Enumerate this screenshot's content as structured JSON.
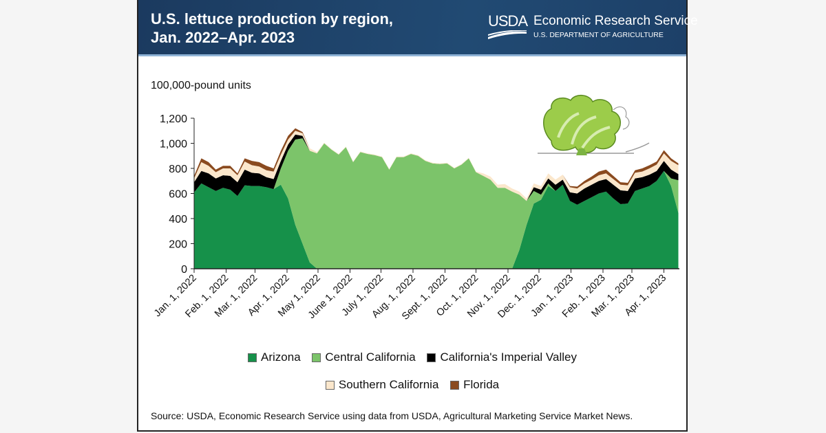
{
  "header": {
    "title_line1": "U.S. lettuce production by region,",
    "title_line2": "Jan. 2022–Apr. 2023",
    "logo_usda": "USDA",
    "logo_agency": "Economic Research Service",
    "logo_department": "U.S. DEPARTMENT OF AGRICULTURE"
  },
  "source": "Source: USDA, Economic Research Service using data from USDA, Agricultural Marketing Service Market News.",
  "chart_data": {
    "type": "area",
    "stacked": true,
    "title": "U.S. lettuce production by region, Jan. 2022–Apr. 2023",
    "ylabel": "100,000-pound units",
    "xlabel": "",
    "ylim": [
      0,
      1200
    ],
    "yticks": [
      0,
      200,
      400,
      600,
      800,
      1000,
      1200
    ],
    "ytick_labels": [
      "0",
      "200",
      "400",
      "600",
      "800",
      "1,000",
      "1,200"
    ],
    "xlim": [
      "2022-01-01",
      "2023-04-16"
    ],
    "xticks": [
      "2022-01-01",
      "2022-02-01",
      "2022-03-01",
      "2022-04-01",
      "2022-05-01",
      "2022-06-01",
      "2022-07-01",
      "2022-08-01",
      "2022-09-01",
      "2022-10-01",
      "2022-11-01",
      "2022-12-01",
      "2023-01-01",
      "2023-02-01",
      "2023-03-01",
      "2023-04-01"
    ],
    "xtick_labels": [
      "Jan. 1, 2022",
      "Feb. 1, 2022",
      "Mar. 1, 2022",
      "Apr. 1, 2022",
      "May 1, 2022",
      "June 1, 2022",
      "July 1, 2022",
      "Aug. 1, 2022",
      "Sept. 1, 2022",
      "Oct. 1, 2022",
      "Nov. 1, 2022",
      "Dec. 1, 2022",
      "Jan. 1, 2023",
      "Feb. 1, 2023",
      "Mar. 1, 2023",
      "Apr. 1, 2023"
    ],
    "grid": false,
    "legend_placement": "bottom",
    "x": [
      "2022-01-01",
      "2022-01-08",
      "2022-01-15",
      "2022-01-22",
      "2022-01-29",
      "2022-02-05",
      "2022-02-12",
      "2022-02-19",
      "2022-02-26",
      "2022-03-05",
      "2022-03-12",
      "2022-03-19",
      "2022-03-26",
      "2022-04-02",
      "2022-04-09",
      "2022-04-16",
      "2022-04-23",
      "2022-04-30",
      "2022-05-07",
      "2022-05-14",
      "2022-05-21",
      "2022-05-28",
      "2022-06-04",
      "2022-06-11",
      "2022-06-18",
      "2022-06-25",
      "2022-07-02",
      "2022-07-09",
      "2022-07-16",
      "2022-07-23",
      "2022-07-30",
      "2022-08-06",
      "2022-08-13",
      "2022-08-20",
      "2022-08-27",
      "2022-09-03",
      "2022-09-10",
      "2022-09-17",
      "2022-09-24",
      "2022-10-01",
      "2022-10-08",
      "2022-10-15",
      "2022-10-22",
      "2022-10-29",
      "2022-11-05",
      "2022-11-12",
      "2022-11-19",
      "2022-11-26",
      "2022-12-03",
      "2022-12-10",
      "2022-12-17",
      "2022-12-24",
      "2022-12-31",
      "2023-01-07",
      "2023-01-14",
      "2023-01-21",
      "2023-01-28",
      "2023-02-04",
      "2023-02-11",
      "2023-02-18",
      "2023-02-25",
      "2023-03-04",
      "2023-03-11",
      "2023-03-18",
      "2023-03-25",
      "2023-04-01",
      "2023-04-08",
      "2023-04-15"
    ],
    "series": [
      {
        "name": "Arizona",
        "color": "#16914a",
        "values": [
          610,
          680,
          650,
          620,
          645,
          630,
          580,
          665,
          660,
          660,
          650,
          635,
          670,
          560,
          350,
          200,
          50,
          0,
          0,
          0,
          0,
          0,
          0,
          0,
          0,
          0,
          0,
          0,
          0,
          0,
          0,
          0,
          0,
          0,
          0,
          0,
          0,
          0,
          0,
          0,
          0,
          0,
          0,
          0,
          0,
          150,
          350,
          520,
          550,
          660,
          620,
          670,
          540,
          510,
          540,
          570,
          600,
          615,
          560,
          515,
          520,
          620,
          640,
          660,
          700,
          780,
          660,
          445
        ]
      },
      {
        "name": "Central California",
        "color": "#7cc46a",
        "values": [
          0,
          0,
          0,
          0,
          0,
          0,
          0,
          0,
          0,
          0,
          0,
          0,
          130,
          380,
          680,
          840,
          890,
          920,
          1000,
          950,
          910,
          970,
          850,
          930,
          915,
          905,
          890,
          790,
          890,
          890,
          915,
          900,
          860,
          840,
          835,
          840,
          800,
          830,
          880,
          770,
          740,
          710,
          645,
          645,
          615,
          440,
          190,
          100,
          40,
          20,
          0,
          0,
          0,
          0,
          0,
          0,
          0,
          0,
          0,
          0,
          0,
          0,
          0,
          0,
          0,
          0,
          60,
          260
        ]
      },
      {
        "name": "California's Imperial Valley",
        "color": "#000000",
        "values": [
          80,
          100,
          110,
          100,
          100,
          110,
          110,
          125,
          105,
          100,
          80,
          80,
          60,
          50,
          40,
          20,
          0,
          0,
          0,
          0,
          0,
          0,
          0,
          0,
          0,
          0,
          0,
          0,
          0,
          0,
          0,
          0,
          0,
          0,
          0,
          0,
          0,
          0,
          0,
          0,
          0,
          0,
          0,
          0,
          0,
          0,
          0,
          30,
          40,
          40,
          50,
          40,
          70,
          90,
          100,
          100,
          100,
          100,
          110,
          110,
          100,
          100,
          90,
          90,
          80,
          80,
          70,
          50
        ]
      },
      {
        "name": "Southern California",
        "color": "#fbe7cc",
        "values": [
          30,
          70,
          60,
          50,
          55,
          60,
          55,
          65,
          60,
          55,
          55,
          60,
          50,
          40,
          30,
          20,
          20,
          10,
          5,
          5,
          5,
          5,
          5,
          5,
          5,
          5,
          5,
          5,
          5,
          5,
          5,
          5,
          5,
          5,
          5,
          5,
          5,
          5,
          5,
          5,
          20,
          25,
          25,
          30,
          25,
          25,
          20,
          30,
          30,
          40,
          40,
          40,
          40,
          40,
          40,
          40,
          45,
          45,
          45,
          45,
          45,
          45,
          45,
          50,
          50,
          60,
          70,
          70
        ]
      },
      {
        "name": "Florida",
        "color": "#8a4a1f",
        "values": [
          20,
          30,
          30,
          20,
          20,
          20,
          15,
          25,
          35,
          35,
          35,
          25,
          30,
          30,
          20,
          10,
          0,
          0,
          0,
          0,
          0,
          0,
          0,
          0,
          0,
          0,
          0,
          0,
          0,
          0,
          0,
          0,
          0,
          0,
          0,
          0,
          0,
          0,
          0,
          0,
          0,
          0,
          0,
          0,
          0,
          0,
          0,
          0,
          0,
          0,
          0,
          0,
          10,
          15,
          20,
          25,
          30,
          30,
          25,
          20,
          20,
          20,
          25,
          25,
          25,
          25,
          20,
          15
        ]
      }
    ]
  },
  "illustration": "lettuce-icon"
}
